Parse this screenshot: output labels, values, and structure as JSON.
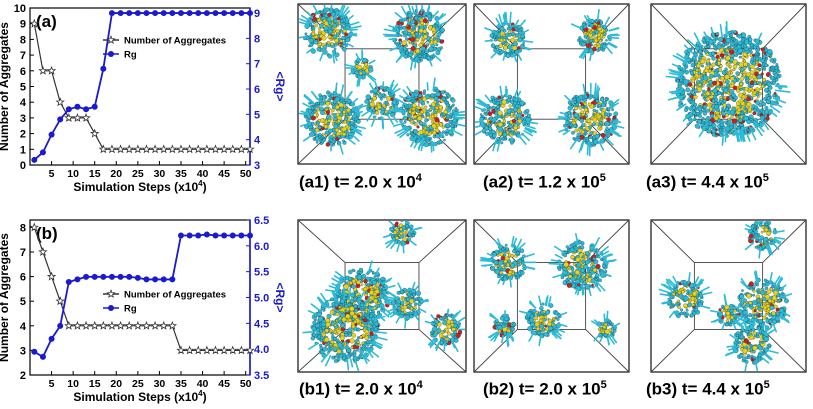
{
  "chart_data": [
    {
      "type": "line",
      "panel_label": "(a)",
      "xlabel": "Simulation Steps (x10",
      "xlabel_exp": "4",
      "xlabel_close": ")",
      "ylabel": "Number of Aggregates",
      "y2label": "<Rg>",
      "xlim": [
        0,
        51
      ],
      "ylim": [
        0,
        10
      ],
      "y2lim": [
        3,
        9.2
      ],
      "xticks": [
        5,
        10,
        15,
        20,
        25,
        30,
        35,
        40,
        45,
        50
      ],
      "yticks": [
        0,
        1,
        2,
        3,
        4,
        5,
        6,
        7,
        8,
        9,
        10
      ],
      "y2ticks": [
        3,
        4,
        5,
        6,
        7,
        8,
        9
      ],
      "legend_position": "center",
      "series": [
        {
          "name": "Number of Aggregates",
          "axis": "left",
          "color": "#333333",
          "marker": "star",
          "x": [
            1,
            3,
            5,
            7,
            9,
            11,
            13,
            15,
            17,
            19,
            21,
            23,
            25,
            27,
            29,
            31,
            33,
            35,
            37,
            39,
            41,
            43,
            45,
            47,
            49,
            51
          ],
          "y": [
            9,
            6,
            6,
            4,
            3,
            3,
            3,
            2,
            1,
            1,
            1,
            1,
            1,
            1,
            1,
            1,
            1,
            1,
            1,
            1,
            1,
            1,
            1,
            1,
            1,
            1
          ]
        },
        {
          "name": "Rg",
          "axis": "right",
          "color": "#1a1ad0",
          "marker": "circle",
          "x": [
            1,
            3,
            5,
            7,
            9,
            11,
            13,
            15,
            17,
            19,
            21,
            23,
            25,
            27,
            29,
            31,
            33,
            35,
            37,
            39,
            41,
            43,
            45,
            47,
            49,
            51
          ],
          "y": [
            3.2,
            3.5,
            4.2,
            4.8,
            5.2,
            5.3,
            5.2,
            5.3,
            6.8,
            9.0,
            9.0,
            9.0,
            9.0,
            9.0,
            9.0,
            9.0,
            9.0,
            9.0,
            9.0,
            9.0,
            9.0,
            9.0,
            9.0,
            9.0,
            9.0,
            9.0
          ]
        }
      ]
    },
    {
      "type": "line",
      "panel_label": "(b)",
      "xlabel": "Simulation Steps (x10",
      "xlabel_exp": "4",
      "xlabel_close": ")",
      "ylabel": "Number of Aggregates",
      "y2label": "<Rg>",
      "xlim": [
        0,
        51
      ],
      "ylim": [
        2,
        8.3
      ],
      "y2lim": [
        3.5,
        6.5
      ],
      "xticks": [
        5,
        10,
        15,
        20,
        25,
        30,
        35,
        40,
        45,
        50
      ],
      "yticks": [
        2,
        3,
        4,
        5,
        6,
        7,
        8
      ],
      "y2ticks": [
        3.5,
        4.0,
        4.5,
        5.0,
        5.5,
        6.0,
        6.5
      ],
      "legend_position": "center",
      "series": [
        {
          "name": "Number of Aggregates",
          "axis": "left",
          "color": "#333333",
          "marker": "star",
          "x": [
            1,
            3,
            5,
            7,
            9,
            11,
            13,
            15,
            17,
            19,
            21,
            23,
            25,
            27,
            29,
            31,
            33,
            35,
            37,
            39,
            41,
            43,
            45,
            47,
            49,
            51
          ],
          "y": [
            8,
            7,
            6,
            5,
            4,
            4,
            4,
            4,
            4,
            4,
            4,
            4,
            4,
            4,
            4,
            4,
            4,
            3,
            3,
            3,
            3,
            3,
            3,
            3,
            3,
            3
          ]
        },
        {
          "name": "Rg",
          "axis": "right",
          "color": "#1a1ad0",
          "marker": "circle",
          "x": [
            1,
            3,
            5,
            7,
            9,
            11,
            13,
            15,
            17,
            19,
            21,
            23,
            25,
            27,
            29,
            31,
            33,
            35,
            37,
            39,
            41,
            43,
            45,
            47,
            49,
            51
          ],
          "y": [
            3.95,
            3.85,
            4.2,
            4.45,
            5.3,
            5.35,
            5.4,
            5.4,
            5.4,
            5.4,
            5.4,
            5.4,
            5.38,
            5.35,
            5.35,
            5.35,
            5.35,
            6.2,
            6.2,
            6.2,
            6.22,
            6.2,
            6.2,
            6.2,
            6.2,
            6.2
          ]
        }
      ]
    }
  ],
  "snapshots": [
    {
      "label": "(a1) t= 2.0 x 10",
      "exp": "4",
      "layout": "many-clusters"
    },
    {
      "label": "(a2) t= 1.2 x 10",
      "exp": "5",
      "layout": "four-clusters"
    },
    {
      "label": "(a3) t= 4.4 x 10",
      "exp": "5",
      "layout": "single-sphere"
    },
    {
      "label": "(b1) t= 2.0 x 10",
      "exp": "4",
      "layout": "large-bottom"
    },
    {
      "label": "(b2) t= 2.0 x 10",
      "exp": "5",
      "layout": "mid-clusters"
    },
    {
      "label": "(b3) t= 4.4 x 10",
      "exp": "5",
      "layout": "right-clusters"
    }
  ],
  "colors": {
    "tail": "#2bbcd8",
    "core": "#e8d21a",
    "accent": "#cc1f1f",
    "left_axis": "#000000",
    "right_axis": "#1a1ad0"
  }
}
